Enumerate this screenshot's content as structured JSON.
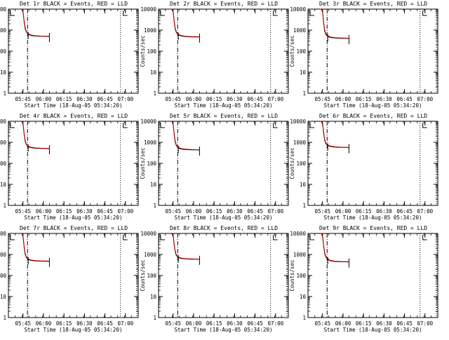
{
  "colors": {
    "events": "#000000",
    "lld": "#cc0000",
    "background": "#ffffff"
  },
  "common": {
    "ylabel": "Counts/sec",
    "xlabel": "Start Time (18-Aug-05 05:34:20)",
    "xtick_labels": [
      "05:45",
      "06:00",
      "06:15",
      "06:30",
      "06:45",
      "07:00"
    ],
    "ytick_labels": [
      "1",
      "10",
      "100",
      "1000",
      "10000"
    ],
    "corner_mark": "L"
  },
  "chart_data": [
    {
      "type": "line",
      "title": "Det 1r BLACK = Events, RED = LLD",
      "y_log": true,
      "ylim": [
        1,
        10000
      ],
      "x_unit": "minutes after 05:34:20",
      "xlim": [
        0,
        95
      ],
      "series": [
        {
          "name": "BLACK = Events",
          "x": [
            10.5,
            11.5,
            12.2,
            13.0,
            14.5,
            16.5,
            20,
            24,
            28,
            30
          ],
          "y": [
            10000,
            2500,
            1200,
            850,
            650,
            560,
            520,
            510,
            505,
            500
          ]
        },
        {
          "name": "RED = LLD",
          "x": [
            10.5,
            11.5,
            12.2,
            13.0,
            14.5,
            16.5,
            20,
            24,
            28,
            30
          ],
          "y": [
            10000,
            2800,
            1400,
            900,
            690,
            590,
            540,
            525,
            515,
            510
          ]
        }
      ]
    },
    {
      "type": "line",
      "title": "Det 2r BLACK = Events, RED = LLD",
      "y_log": true,
      "ylim": [
        1,
        10000
      ],
      "x_unit": "minutes after 05:34:20",
      "xlim": [
        0,
        95
      ],
      "series": [
        {
          "name": "BLACK = Events",
          "x": [
            10.5,
            11.5,
            12.2,
            13.0,
            14.5,
            16.5,
            20,
            24,
            28,
            30
          ],
          "y": [
            10000,
            2300,
            1100,
            780,
            600,
            530,
            490,
            480,
            475,
            470
          ]
        },
        {
          "name": "RED = LLD",
          "x": [
            10.5,
            11.5,
            12.2,
            13.0,
            14.5,
            16.5,
            20,
            24,
            28,
            30
          ],
          "y": [
            10000,
            2600,
            1250,
            840,
            640,
            560,
            510,
            495,
            488,
            482
          ]
        }
      ]
    },
    {
      "type": "line",
      "title": "Det 3r BLACK = Events, RED = LLD",
      "y_log": true,
      "ylim": [
        1,
        10000
      ],
      "x_unit": "minutes after 05:34:20",
      "xlim": [
        0,
        95
      ],
      "series": [
        {
          "name": "BLACK = Events",
          "x": [
            10.5,
            11.5,
            12.2,
            13.0,
            14.5,
            16.5,
            20,
            24,
            28,
            30
          ],
          "y": [
            10000,
            2000,
            900,
            640,
            500,
            445,
            420,
            410,
            405,
            400
          ]
        },
        {
          "name": "RED = LLD",
          "x": [
            10.5,
            11.5,
            12.2,
            13.0,
            14.5,
            16.5,
            20,
            24,
            28,
            30
          ],
          "y": [
            10000,
            2300,
            1050,
            700,
            540,
            470,
            440,
            425,
            418,
            412
          ]
        }
      ]
    },
    {
      "type": "line",
      "title": "Det 4r BLACK = Events, RED = LLD",
      "y_log": true,
      "ylim": [
        1,
        10000
      ],
      "x_unit": "minutes after 05:34:20",
      "xlim": [
        0,
        95
      ],
      "series": [
        {
          "name": "BLACK = Events",
          "x": [
            10.5,
            11.5,
            12.2,
            13.0,
            14.5,
            16.5,
            20,
            24,
            28,
            30
          ],
          "y": [
            10000,
            2400,
            1150,
            800,
            620,
            560,
            520,
            510,
            505,
            500
          ]
        },
        {
          "name": "RED = LLD",
          "x": [
            10.5,
            11.5,
            12.2,
            13.0,
            14.5,
            16.5,
            20,
            24,
            28,
            30
          ],
          "y": [
            10000,
            2700,
            1300,
            860,
            660,
            585,
            540,
            525,
            515,
            510
          ]
        }
      ]
    },
    {
      "type": "line",
      "title": "Det 5r BLACK = Events, RED = LLD",
      "y_log": true,
      "ylim": [
        1,
        10000
      ],
      "x_unit": "minutes after 05:34:20",
      "xlim": [
        0,
        95
      ],
      "series": [
        {
          "name": "BLACK = Events",
          "x": [
            10.5,
            11.5,
            12.2,
            13.0,
            14.5,
            16.5,
            20,
            24,
            28,
            30
          ],
          "y": [
            10000,
            2200,
            1000,
            700,
            540,
            480,
            450,
            440,
            435,
            430
          ]
        },
        {
          "name": "RED = LLD",
          "x": [
            10.5,
            11.5,
            12.2,
            13.0,
            14.5,
            16.5,
            20,
            24,
            28,
            30
          ],
          "y": [
            10000,
            2500,
            1150,
            760,
            580,
            505,
            470,
            455,
            448,
            442
          ]
        }
      ]
    },
    {
      "type": "line",
      "title": "Det 6r BLACK = Events, RED = LLD",
      "y_log": true,
      "ylim": [
        1,
        10000
      ],
      "x_unit": "minutes after 05:34:20",
      "xlim": [
        0,
        95
      ],
      "series": [
        {
          "name": "BLACK = Events",
          "x": [
            10.5,
            11.5,
            12.2,
            13.0,
            14.5,
            16.5,
            20,
            24,
            28,
            30
          ],
          "y": [
            10000,
            2600,
            1250,
            880,
            700,
            630,
            590,
            575,
            570,
            560
          ]
        },
        {
          "name": "RED = LLD",
          "x": [
            10.5,
            11.5,
            12.2,
            13.0,
            14.5,
            16.5,
            20,
            24,
            28,
            30
          ],
          "y": [
            10000,
            2900,
            1400,
            950,
            740,
            660,
            610,
            590,
            580,
            572
          ]
        }
      ]
    },
    {
      "type": "line",
      "title": "Det 7r BLACK = Events, RED = LLD",
      "y_log": true,
      "ylim": [
        1,
        10000
      ],
      "x_unit": "minutes after 05:34:20",
      "xlim": [
        0,
        95
      ],
      "series": [
        {
          "name": "BLACK = Events",
          "x": [
            10.5,
            11.5,
            12.2,
            13.0,
            14.5,
            16.5,
            20,
            24,
            28,
            30
          ],
          "y": [
            10000,
            2200,
            1050,
            740,
            580,
            520,
            490,
            480,
            475,
            470
          ]
        },
        {
          "name": "RED = LLD",
          "x": [
            10.5,
            11.5,
            12.2,
            13.0,
            14.5,
            16.5,
            20,
            24,
            28,
            30
          ],
          "y": [
            10000,
            2500,
            1200,
            800,
            620,
            545,
            510,
            495,
            488,
            482
          ]
        }
      ]
    },
    {
      "type": "line",
      "title": "Det 8r BLACK = Events, RED = LLD",
      "y_log": true,
      "ylim": [
        1,
        10000
      ],
      "x_unit": "minutes after 05:34:20",
      "xlim": [
        0,
        95
      ],
      "series": [
        {
          "name": "BLACK = Events",
          "x": [
            10.5,
            11.5,
            12.2,
            13.0,
            14.5,
            16.5,
            20,
            24,
            28,
            30
          ],
          "y": [
            10000,
            2700,
            1300,
            900,
            720,
            650,
            610,
            600,
            595,
            590
          ]
        },
        {
          "name": "RED = LLD",
          "x": [
            10.5,
            11.5,
            12.2,
            13.0,
            14.5,
            16.5,
            20,
            24,
            28,
            30
          ],
          "y": [
            10000,
            3000,
            1450,
            970,
            760,
            680,
            630,
            615,
            605,
            600
          ]
        }
      ]
    },
    {
      "type": "line",
      "title": "Det 9r BLACK = Events, RED = LLD",
      "y_log": true,
      "ylim": [
        1,
        10000
      ],
      "x_unit": "minutes after 05:34:20",
      "xlim": [
        0,
        95
      ],
      "series": [
        {
          "name": "BLACK = Events",
          "x": [
            10.5,
            11.5,
            12.2,
            13.0,
            14.5,
            16.5,
            20,
            24,
            28,
            30
          ],
          "y": [
            10000,
            2300,
            1100,
            760,
            580,
            500,
            460,
            450,
            445,
            440
          ]
        },
        {
          "name": "RED = LLD",
          "x": [
            10.5,
            11.5,
            12.2,
            13.0,
            14.5,
            16.5,
            20,
            24,
            28,
            30
          ],
          "y": [
            10000,
            2600,
            1250,
            820,
            620,
            525,
            480,
            465,
            458,
            452
          ]
        }
      ]
    }
  ],
  "markers": {
    "dashdot_x": 14,
    "dotted_x": [
      82,
      94
    ]
  }
}
